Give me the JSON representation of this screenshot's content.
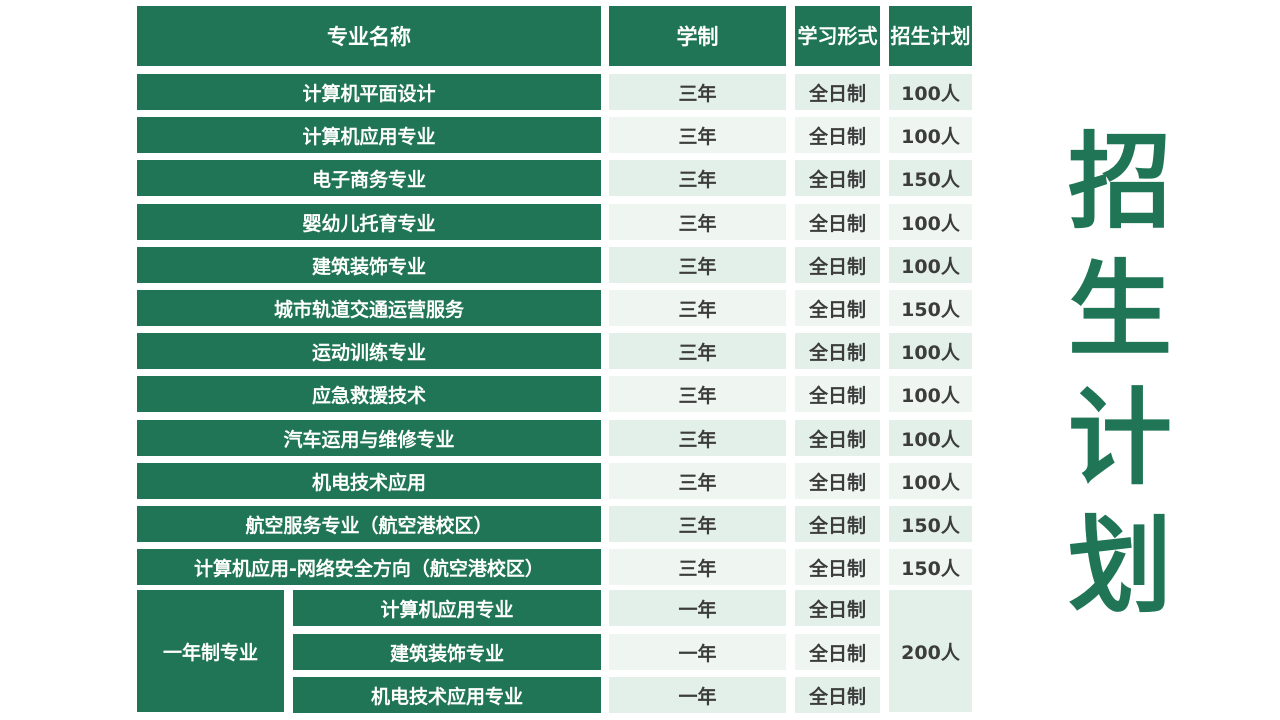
{
  "header": {
    "name": "专业名称",
    "duration": "学制",
    "mode": "学习形式",
    "quota": "招生计划"
  },
  "rows": [
    {
      "name": "计算机平面设计",
      "duration": "三年",
      "mode": "全日制",
      "quota": "100人"
    },
    {
      "name": "计算机应用专业",
      "duration": "三年",
      "mode": "全日制",
      "quota": "100人"
    },
    {
      "name": "电子商务专业",
      "duration": "三年",
      "mode": "全日制",
      "quota": "150人"
    },
    {
      "name": "婴幼儿托育专业",
      "duration": "三年",
      "mode": "全日制",
      "quota": "100人"
    },
    {
      "name": "建筑装饰专业",
      "duration": "三年",
      "mode": "全日制",
      "quota": "100人"
    },
    {
      "name": "城市轨道交通运营服务",
      "duration": "三年",
      "mode": "全日制",
      "quota": "150人"
    },
    {
      "name": "运动训练专业",
      "duration": "三年",
      "mode": "全日制",
      "quota": "100人"
    },
    {
      "name": "应急救援技术",
      "duration": "三年",
      "mode": "全日制",
      "quota": "100人"
    },
    {
      "name": "汽车运用与维修专业",
      "duration": "三年",
      "mode": "全日制",
      "quota": "100人"
    },
    {
      "name": "机电技术应用",
      "duration": "三年",
      "mode": "全日制",
      "quota": "100人"
    },
    {
      "name": "航空服务专业（航空港校区）",
      "duration": "三年",
      "mode": "全日制",
      "quota": "150人"
    },
    {
      "name": "计算机应用-网络安全方向（航空港校区）",
      "duration": "三年",
      "mode": "全日制",
      "quota": "150人"
    }
  ],
  "one_year": {
    "group_label": "一年制专业",
    "quota": "200人",
    "rows": [
      {
        "name": "计算机应用专业",
        "duration": "一年",
        "mode": "全日制"
      },
      {
        "name": "建筑装饰专业",
        "duration": "一年",
        "mode": "全日制"
      },
      {
        "name": "机电技术应用专业",
        "duration": "一年",
        "mode": "全日制"
      }
    ]
  },
  "side_title": [
    "招",
    "生",
    "计",
    "划"
  ],
  "colors": {
    "primary_green": "#1f7555",
    "light_cell": "#e3f0ea",
    "light_cell_alt": "#eff6f2",
    "text_dark": "#3c3c3c"
  }
}
